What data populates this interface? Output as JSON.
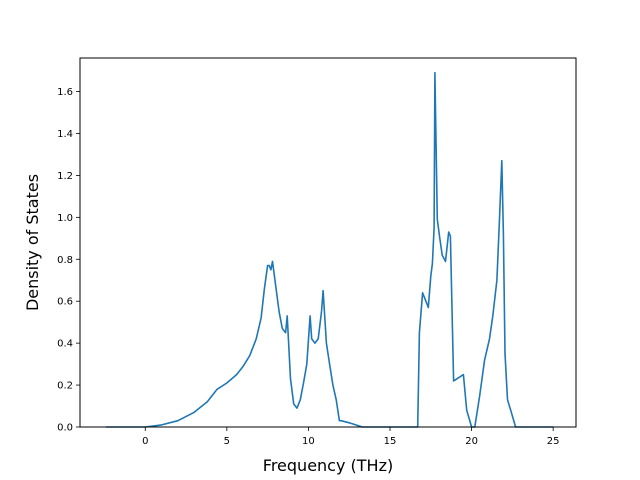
{
  "chart_data": {
    "type": "line",
    "title": "",
    "xlabel": "Frequency (THz)",
    "ylabel": "Density of States",
    "xlim": [
      -4.0,
      26.4
    ],
    "ylim": [
      0.0,
      1.76
    ],
    "xticks": [
      0,
      5,
      10,
      15,
      20,
      25
    ],
    "yticks": [
      0.0,
      0.2,
      0.4,
      0.6,
      0.8,
      1.0,
      1.2,
      1.4,
      1.6
    ],
    "grid": false,
    "line_color": "#1f77b4",
    "series": [
      {
        "x": [
          -2.4,
          -1.0,
          0.0,
          1.0,
          2.0,
          3.0,
          3.8,
          4.4,
          5.0,
          5.6,
          6.0,
          6.4,
          6.8,
          7.1,
          7.3,
          7.5,
          7.6,
          7.7,
          7.8,
          8.0,
          8.2,
          8.4,
          8.6,
          8.7,
          8.9,
          9.1,
          9.3,
          9.5,
          9.7,
          9.9,
          10.1,
          10.2,
          10.4,
          10.6,
          10.8,
          10.9,
          11.1,
          11.3,
          11.5,
          11.7,
          11.9,
          12.0,
          12.5,
          13.3,
          14.0,
          15.0,
          16.0,
          16.7,
          16.8,
          17.0,
          17.2,
          17.35,
          17.5,
          17.6,
          17.7,
          17.75,
          17.9,
          18.05,
          18.2,
          18.4,
          18.6,
          18.7,
          18.9,
          19.1,
          19.3,
          19.5,
          19.7,
          20.0,
          20.2,
          20.5,
          20.8,
          21.1,
          21.3,
          21.55,
          21.7,
          21.85,
          21.95,
          22.05,
          22.2,
          22.4,
          22.7,
          23.0,
          25.0
        ],
        "y": [
          0.0,
          0.0,
          0.0,
          0.01,
          0.03,
          0.07,
          0.12,
          0.18,
          0.21,
          0.25,
          0.29,
          0.34,
          0.42,
          0.52,
          0.66,
          0.77,
          0.77,
          0.75,
          0.79,
          0.67,
          0.55,
          0.47,
          0.45,
          0.53,
          0.23,
          0.11,
          0.09,
          0.13,
          0.21,
          0.3,
          0.53,
          0.42,
          0.4,
          0.42,
          0.55,
          0.65,
          0.4,
          0.3,
          0.2,
          0.13,
          0.03,
          0.03,
          0.02,
          0.0,
          0.0,
          0.0,
          0.0,
          0.0,
          0.45,
          0.64,
          0.6,
          0.57,
          0.72,
          0.78,
          0.95,
          1.69,
          0.99,
          0.9,
          0.82,
          0.79,
          0.93,
          0.91,
          0.22,
          0.23,
          0.24,
          0.25,
          0.08,
          0.0,
          0.0,
          0.15,
          0.32,
          0.42,
          0.53,
          0.7,
          0.97,
          1.27,
          0.92,
          0.35,
          0.13,
          0.08,
          0.0,
          0.0,
          0.0
        ]
      }
    ]
  }
}
